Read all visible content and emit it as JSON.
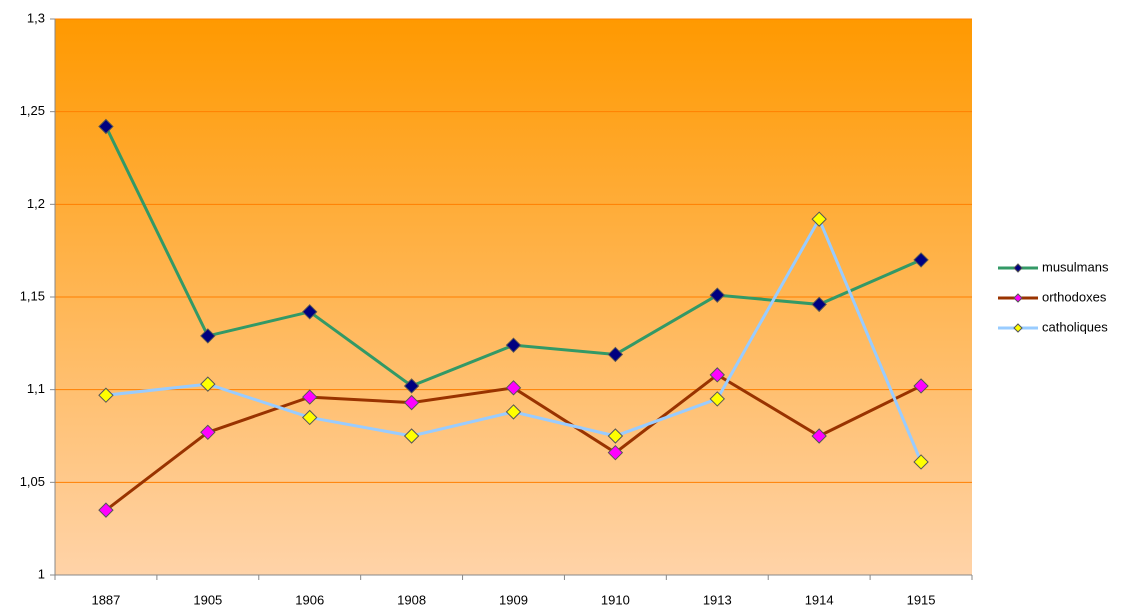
{
  "chart_data": {
    "type": "line",
    "categories": [
      "1887",
      "1905",
      "1906",
      "1908",
      "1909",
      "1910",
      "1913",
      "1914",
      "1915"
    ],
    "series": [
      {
        "name": "musulmans",
        "color": "#339966",
        "marker_color": "#000080",
        "values": [
          1.242,
          1.129,
          1.142,
          1.102,
          1.124,
          1.119,
          1.151,
          1.146,
          1.17
        ]
      },
      {
        "name": "orthodoxes",
        "color": "#993300",
        "marker_color": "#ff00ff",
        "values": [
          1.035,
          1.077,
          1.096,
          1.093,
          1.101,
          1.066,
          1.108,
          1.075,
          1.102
        ]
      },
      {
        "name": "catholiques",
        "color": "#99ccff",
        "marker_color": "#ffff00",
        "values": [
          1.097,
          1.103,
          1.085,
          1.075,
          1.088,
          1.075,
          1.095,
          1.192,
          1.061
        ]
      }
    ],
    "ylim": [
      1,
      1.3
    ],
    "yticks": [
      1,
      {
        "value": 1.05,
        "label": "1,05"
      },
      {
        "value": 1.1,
        "label": "1,1"
      },
      {
        "value": 1.15,
        "label": "1,15"
      },
      {
        "value": 1.2,
        "label": "1,2"
      },
      {
        "value": 1.25,
        "label": "1,25"
      },
      {
        "value": 1.3,
        "label": "1,3"
      }
    ],
    "grid": true,
    "legend": "right"
  }
}
